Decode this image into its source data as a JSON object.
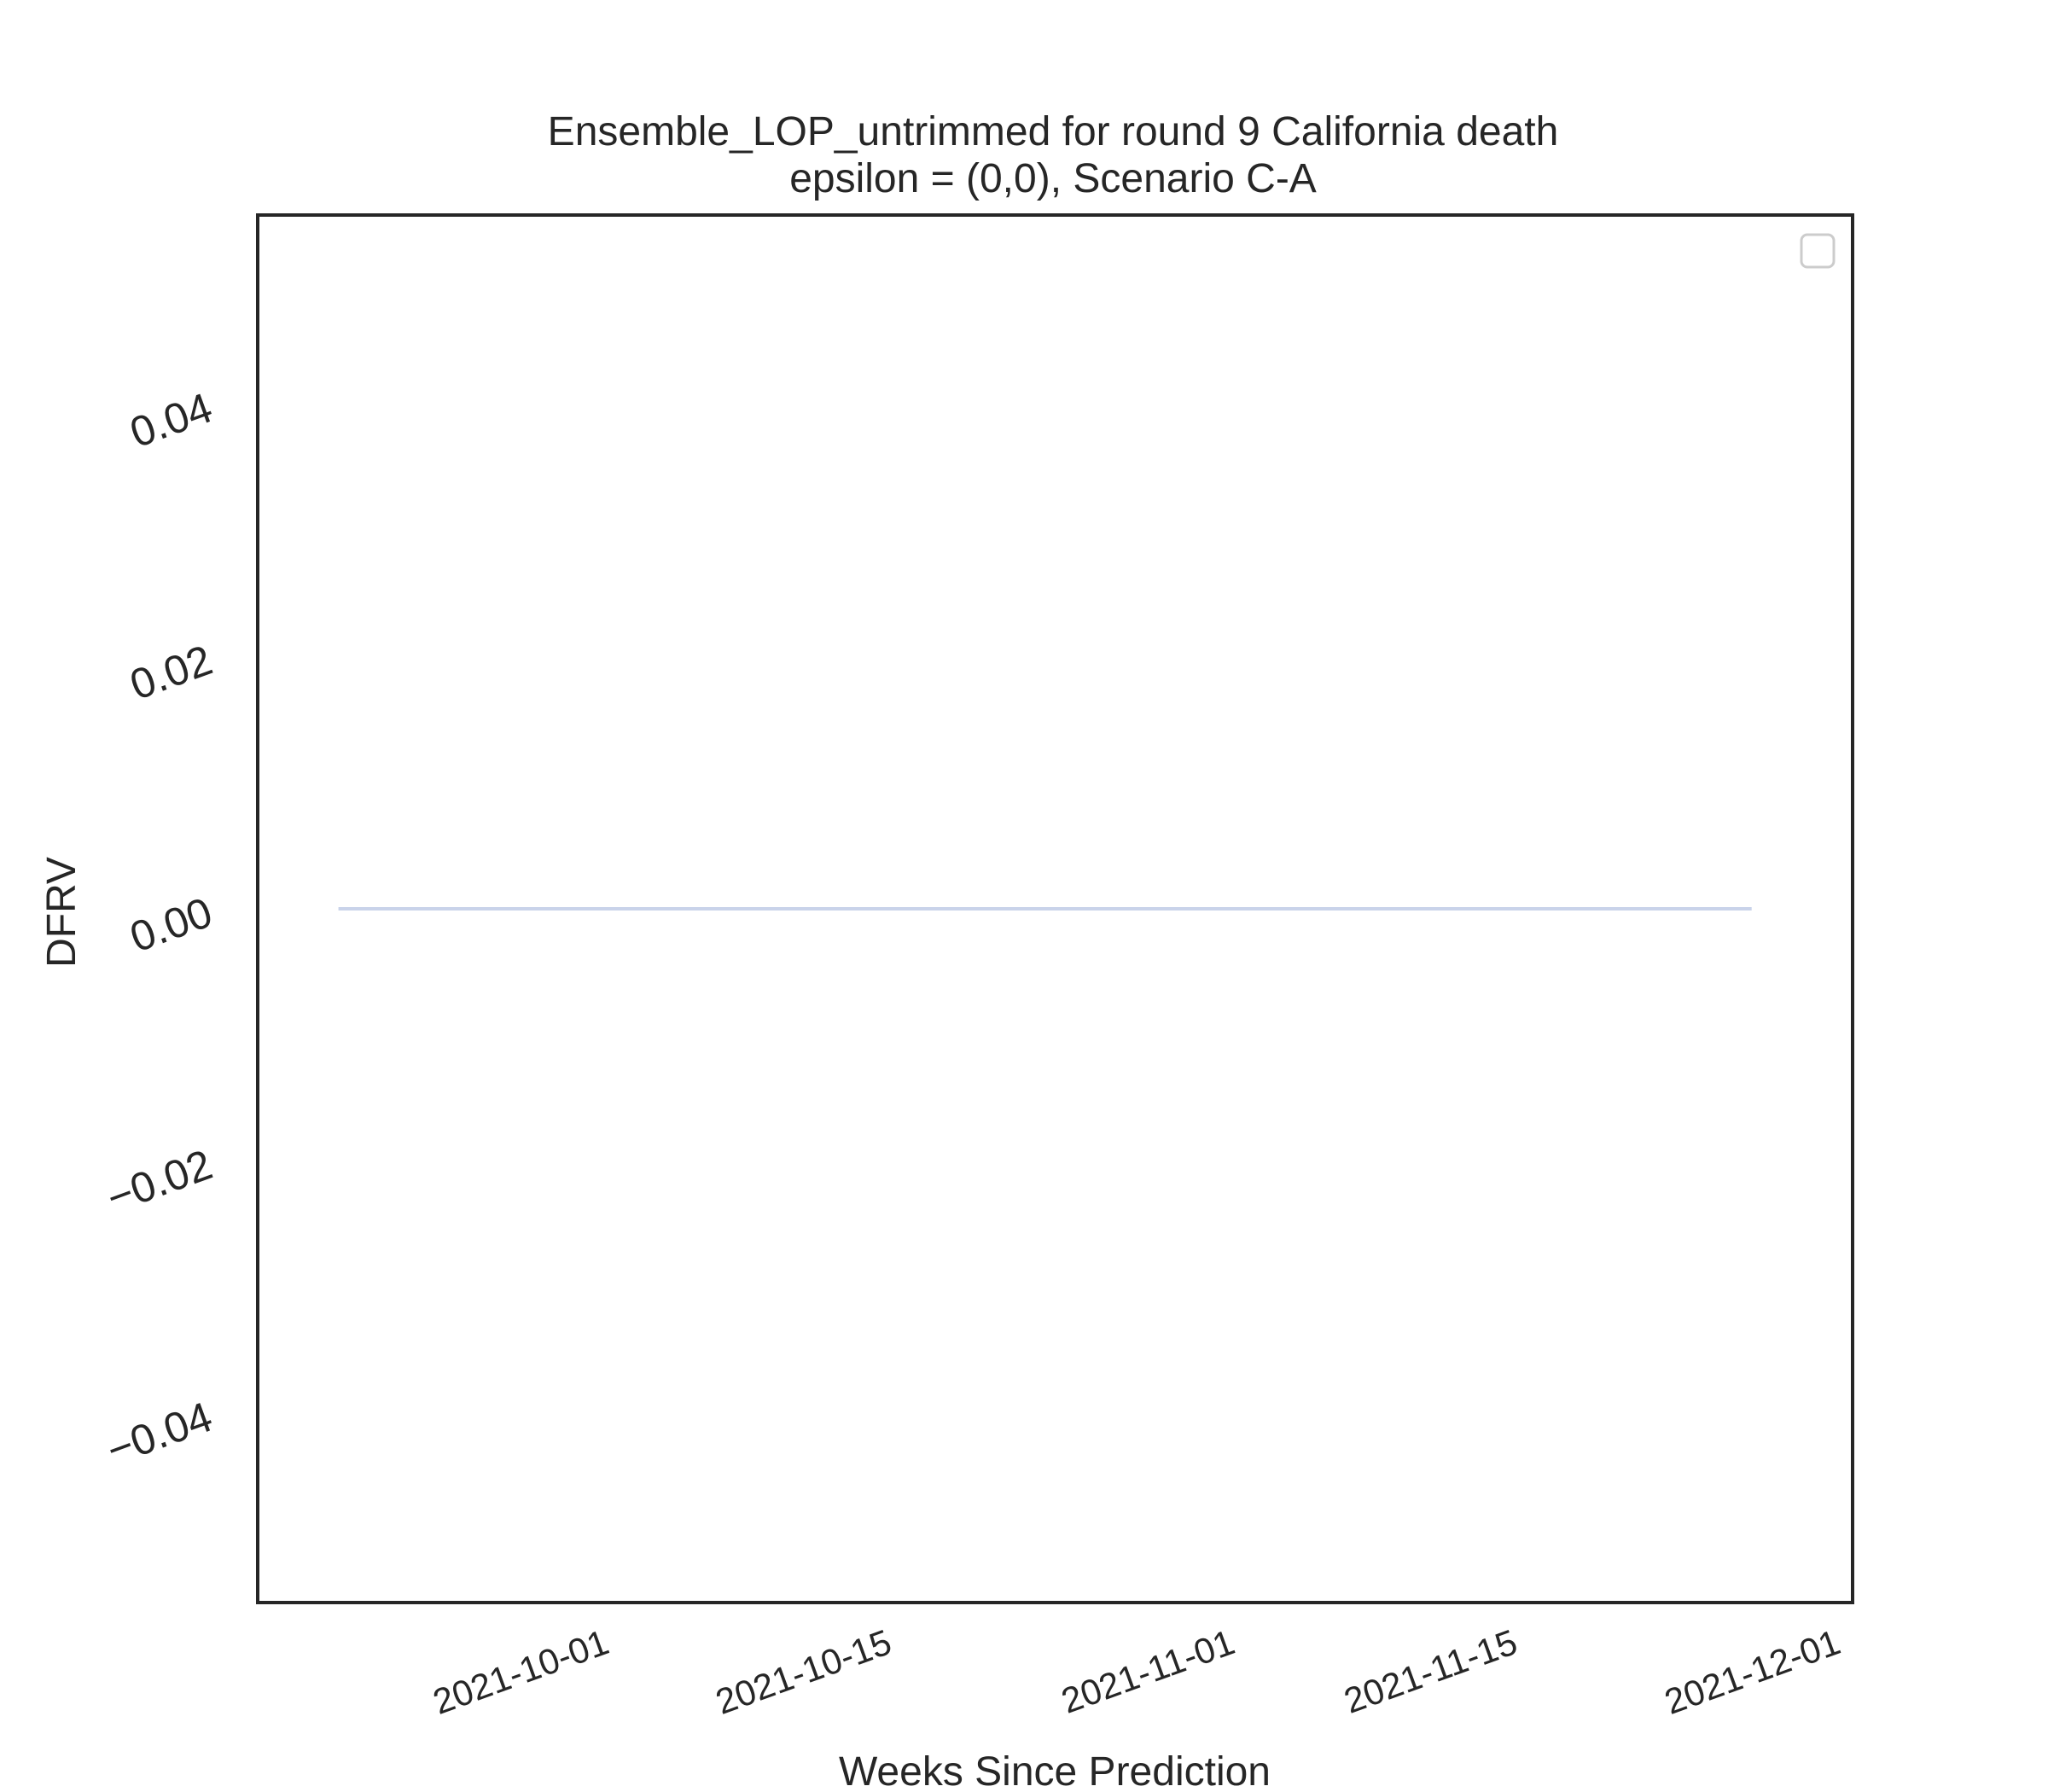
{
  "chart_data": {
    "type": "line",
    "title": "Ensemble_LOP_untrimmed for round 9 California death",
    "subtitle": "epsilon = (0,0), Scenario C-A",
    "xlabel": "Weeks Since Prediction",
    "ylabel": "DFRV",
    "x_axis_type": "date",
    "xlim": [
      "2021-09-14",
      "2021-12-02"
    ],
    "ylim": [
      -0.055,
      0.055
    ],
    "x_ticks": [
      "2021-10-01",
      "2021-10-15",
      "2021-11-01",
      "2021-11-15",
      "2021-12-01"
    ],
    "y_ticks": [
      -0.04,
      -0.02,
      0.0,
      0.02,
      0.04
    ],
    "y_tick_labels": [
      "−0.04",
      "−0.02",
      "0.00",
      "0.02",
      "0.04"
    ],
    "grid": false,
    "legend": {
      "position": "top-right",
      "entries": []
    },
    "series": [
      {
        "color": "#c9d3ea",
        "points": [
          [
            "2021-09-18",
            0
          ],
          [
            "2021-11-27",
            0
          ]
        ]
      }
    ]
  }
}
